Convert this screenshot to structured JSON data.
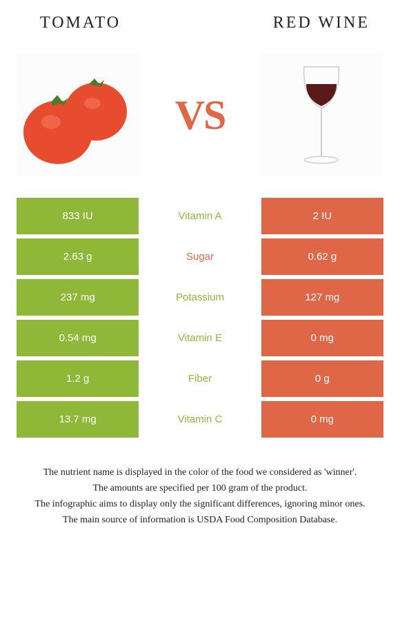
{
  "header": {
    "left_title": "TOMATO",
    "right_title": "RED WINE",
    "vs_text": "VS"
  },
  "colors": {
    "tomato_green": "#8fb839",
    "wine_orange": "#e06648",
    "vs_color": "#e06648",
    "tomato_red": "#e84c2e",
    "tomato_stem": "#4a7c2a",
    "wine_liquid": "#5a1a1a",
    "glass_stroke": "#cccccc"
  },
  "rows": [
    {
      "left": "833 IU",
      "mid": "Vitamin A",
      "right": "2 IU",
      "winner": "left"
    },
    {
      "left": "2.63 g",
      "mid": "Sugar",
      "right": "0.62 g",
      "winner": "right"
    },
    {
      "left": "237 mg",
      "mid": "Potassium",
      "right": "127 mg",
      "winner": "left"
    },
    {
      "left": "0.54 mg",
      "mid": "Vitamin E",
      "right": "0 mg",
      "winner": "left"
    },
    {
      "left": "1.2 g",
      "mid": "Fiber",
      "right": "0 g",
      "winner": "left"
    },
    {
      "left": "13.7 mg",
      "mid": "Vitamin C",
      "right": "0 mg",
      "winner": "left"
    }
  ],
  "footer": {
    "line1": "The nutrient name is displayed in the color of the food we considered as 'winner'.",
    "line2": "The amounts are specified per 100 gram of the product.",
    "line3": "The infographic aims to display only the significant differences, ignoring minor ones.",
    "line4": "The main source of information is USDA Food Composition Database."
  }
}
